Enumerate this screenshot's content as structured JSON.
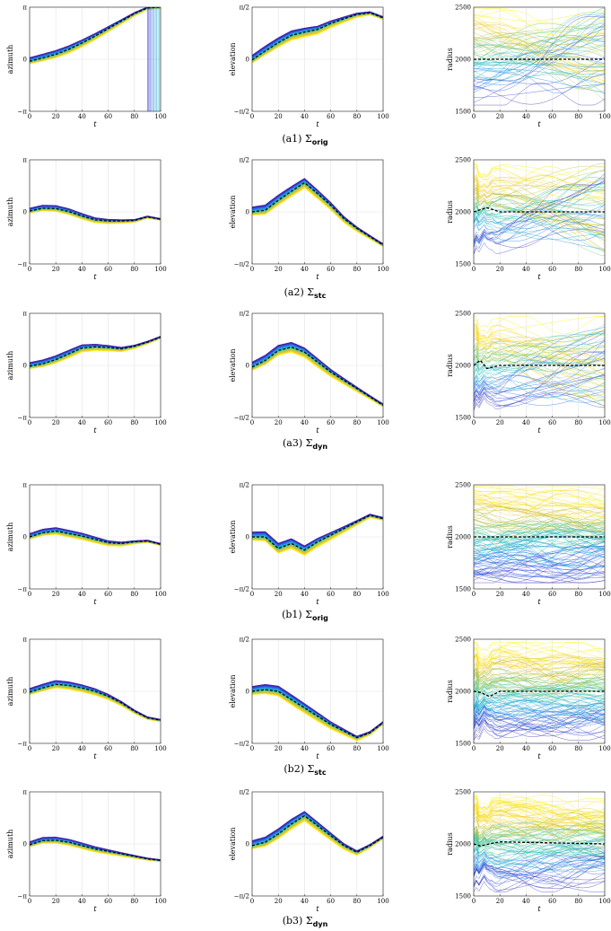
{
  "rows": [
    {
      "caption_label": "(a1)",
      "caption_symbol": "Σ",
      "caption_sub": "orig"
    },
    {
      "caption_label": "(a2)",
      "caption_symbol": "Σ",
      "caption_sub": "stc"
    },
    {
      "caption_label": "(a3)",
      "caption_symbol": "Σ",
      "caption_sub": "dyn"
    },
    {
      "caption_label": "(b1)",
      "caption_symbol": "Σ",
      "caption_sub": "orig"
    },
    {
      "caption_label": "(b2)",
      "caption_symbol": "Σ",
      "caption_sub": "stc"
    },
    {
      "caption_label": "(b3)",
      "caption_symbol": "Σ",
      "caption_sub": "dyn"
    }
  ],
  "colormap": [
    "#3e26a8",
    "#2f61f3",
    "#1d9fdd",
    "#1fbfb8",
    "#6ccc84",
    "#c9c040",
    "#fbcd2d",
    "#f9fb0e"
  ],
  "mean_line_color": "#000000",
  "chart_data": [
    {
      "row": 0,
      "panel": "azimuth",
      "type": "line",
      "xlabel": "t",
      "ylabel": "azimuth",
      "xlim": [
        0,
        100
      ],
      "ylim": [
        "−π",
        "π"
      ],
      "xticks": [
        0,
        20,
        40,
        60,
        80,
        100
      ],
      "yticks": [
        "−π",
        "0",
        "π"
      ],
      "mean_x": [
        0,
        10,
        20,
        30,
        40,
        50,
        60,
        70,
        80,
        90,
        100
      ],
      "mean_y": [
        -0.12,
        0.08,
        0.3,
        0.6,
        0.98,
        1.4,
        1.85,
        2.3,
        2.75,
        3.1,
        3.14
      ],
      "band": 0.22,
      "wrap": true
    },
    {
      "row": 0,
      "panel": "elevation",
      "type": "line",
      "xlabel": "t",
      "ylabel": "elevation",
      "xlim": [
        0,
        100
      ],
      "ylim": [
        "−π/2",
        "π/2"
      ],
      "xticks": [
        0,
        20,
        40,
        60,
        80,
        100
      ],
      "yticks": [
        "−π/2",
        "0",
        "π/2"
      ],
      "mean_x": [
        0,
        10,
        20,
        30,
        40,
        50,
        60,
        70,
        80,
        90,
        100
      ],
      "mean_y": [
        -0.02,
        0.25,
        0.5,
        0.72,
        0.82,
        0.9,
        1.08,
        1.22,
        1.35,
        1.4,
        1.25
      ],
      "band": 0.14
    },
    {
      "row": 0,
      "panel": "radius",
      "type": "line",
      "xlabel": "t",
      "ylabel": "radius",
      "xlim": [
        0,
        100
      ],
      "ylim": [
        1500,
        2500
      ],
      "xticks": [
        0,
        20,
        40,
        60,
        80,
        100
      ],
      "yticks": [
        1500,
        2000,
        2500
      ],
      "mean_x": [
        0,
        100
      ],
      "mean_y": [
        2000,
        2000
      ],
      "radius_min": 1600,
      "radius_max": 2450,
      "transient": false
    },
    {
      "row": 1,
      "panel": "azimuth",
      "type": "line",
      "xlabel": "t",
      "ylabel": "azimuth",
      "xlim": [
        0,
        100
      ],
      "ylim": [
        "−π",
        "π"
      ],
      "xticks": [
        0,
        20,
        40,
        60,
        80,
        100
      ],
      "yticks": [
        "−π",
        "0",
        "π"
      ],
      "mean_x": [
        0,
        10,
        20,
        30,
        40,
        50,
        60,
        70,
        80,
        90,
        100
      ],
      "mean_y": [
        0.05,
        0.22,
        0.2,
        0.02,
        -0.25,
        -0.48,
        -0.55,
        -0.55,
        -0.52,
        -0.3,
        -0.45
      ],
      "band": 0.17
    },
    {
      "row": 1,
      "panel": "elevation",
      "type": "line",
      "xlabel": "t",
      "ylabel": "elevation",
      "xlim": [
        0,
        100
      ],
      "ylim": [
        "−π/2",
        "π/2"
      ],
      "xticks": [
        0,
        20,
        40,
        60,
        80,
        100
      ],
      "yticks": [
        "−π/2",
        "0",
        "π/2"
      ],
      "mean_x": [
        0,
        10,
        20,
        30,
        40,
        50,
        60,
        70,
        80,
        90,
        100
      ],
      "mean_y": [
        0.0,
        0.05,
        0.35,
        0.62,
        0.88,
        0.55,
        0.2,
        -0.2,
        -0.5,
        -0.75,
        -1.0
      ],
      "band": 0.15
    },
    {
      "row": 1,
      "panel": "radius",
      "type": "line",
      "xlabel": "t",
      "ylabel": "radius",
      "xlim": [
        0,
        100
      ],
      "ylim": [
        1500,
        2500
      ],
      "xticks": [
        0,
        20,
        40,
        60,
        80,
        100
      ],
      "yticks": [
        1500,
        2000,
        2500
      ],
      "mean_x": [
        0,
        5,
        10,
        20,
        100
      ],
      "mean_y": [
        2000,
        2020,
        2040,
        2000,
        2000
      ],
      "radius_min": 1620,
      "radius_max": 2420,
      "transient": true
    },
    {
      "row": 2,
      "panel": "azimuth",
      "type": "line",
      "xlabel": "t",
      "ylabel": "azimuth",
      "xlim": [
        0,
        100
      ],
      "ylim": [
        "−π",
        "π"
      ],
      "xticks": [
        0,
        20,
        40,
        60,
        80,
        100
      ],
      "yticks": [
        "−π",
        "0",
        "π"
      ],
      "mean_x": [
        0,
        10,
        20,
        30,
        40,
        50,
        60,
        70,
        80,
        90,
        100
      ],
      "mean_y": [
        -0.05,
        0.1,
        0.35,
        0.7,
        1.05,
        1.12,
        1.08,
        1.0,
        1.15,
        1.4,
        1.7
      ],
      "band": 0.22
    },
    {
      "row": 2,
      "panel": "elevation",
      "type": "line",
      "xlabel": "t",
      "ylabel": "elevation",
      "xlim": [
        0,
        100
      ],
      "ylim": [
        "−π/2",
        "π/2"
      ],
      "xticks": [
        0,
        20,
        40,
        60,
        80,
        100
      ],
      "yticks": [
        "−π/2",
        "0",
        "π/2"
      ],
      "mean_x": [
        0,
        10,
        20,
        30,
        40,
        50,
        60,
        70,
        80,
        90,
        100
      ],
      "mean_y": [
        -0.05,
        0.15,
        0.45,
        0.55,
        0.4,
        0.1,
        -0.2,
        -0.45,
        -0.7,
        -0.95,
        -1.2
      ],
      "band": 0.15
    },
    {
      "row": 2,
      "panel": "radius",
      "type": "line",
      "xlabel": "t",
      "ylabel": "radius",
      "xlim": [
        0,
        100
      ],
      "ylim": [
        1500,
        2500
      ],
      "xticks": [
        0,
        20,
        40,
        60,
        80,
        100
      ],
      "yticks": [
        1500,
        2000,
        2500
      ],
      "mean_x": [
        0,
        5,
        10,
        20,
        100
      ],
      "mean_y": [
        2000,
        2050,
        1970,
        2000,
        2000
      ],
      "radius_min": 1580,
      "radius_max": 2430,
      "transient": true
    },
    {
      "row": 3,
      "panel": "azimuth",
      "type": "line",
      "xlabel": "t",
      "ylabel": "azimuth",
      "xlim": [
        0,
        100
      ],
      "ylim": [
        "−π",
        "π"
      ],
      "xticks": [
        0,
        20,
        40,
        60,
        80,
        100
      ],
      "yticks": [
        "−π",
        "0",
        "π"
      ],
      "mean_x": [
        0,
        10,
        20,
        30,
        40,
        50,
        60,
        70,
        80,
        90,
        100
      ],
      "mean_y": [
        0.0,
        0.25,
        0.35,
        0.2,
        0.05,
        -0.15,
        -0.35,
        -0.4,
        -0.3,
        -0.25,
        -0.45
      ],
      "band": 0.2
    },
    {
      "row": 3,
      "panel": "elevation",
      "type": "line",
      "xlabel": "t",
      "ylabel": "elevation",
      "xlim": [
        0,
        100
      ],
      "ylim": [
        "−π/2",
        "π/2"
      ],
      "xticks": [
        0,
        20,
        40,
        60,
        80,
        100
      ],
      "yticks": [
        "−π/2",
        "0",
        "π/2"
      ],
      "mean_x": [
        0,
        10,
        20,
        30,
        40,
        50,
        60,
        70,
        80,
        90,
        100
      ],
      "mean_y": [
        0.0,
        0.0,
        -0.35,
        -0.2,
        -0.4,
        -0.15,
        0.05,
        0.25,
        0.45,
        0.65,
        0.55
      ],
      "band": 0.15
    },
    {
      "row": 3,
      "panel": "radius",
      "type": "line",
      "xlabel": "t",
      "ylabel": "radius",
      "xlim": [
        0,
        100
      ],
      "ylim": [
        1500,
        2500
      ],
      "xticks": [
        0,
        20,
        40,
        60,
        80,
        100
      ],
      "yticks": [
        1500,
        2000,
        2500
      ],
      "mean_x": [
        0,
        100
      ],
      "mean_y": [
        2000,
        2000
      ],
      "radius_min": 1600,
      "radius_max": 2450,
      "transient": false
    },
    {
      "row": 4,
      "panel": "azimuth",
      "type": "line",
      "xlabel": "t",
      "ylabel": "azimuth",
      "xlim": [
        0,
        100
      ],
      "ylim": [
        "−π",
        "π"
      ],
      "xticks": [
        0,
        20,
        40,
        60,
        80,
        100
      ],
      "yticks": [
        "−π",
        "0",
        "π"
      ],
      "mean_x": [
        0,
        10,
        20,
        30,
        40,
        50,
        60,
        70,
        80,
        90,
        100
      ],
      "mean_y": [
        -0.05,
        0.2,
        0.42,
        0.35,
        0.2,
        0.0,
        -0.3,
        -0.7,
        -1.2,
        -1.6,
        -1.75
      ],
      "band": 0.22
    },
    {
      "row": 4,
      "panel": "elevation",
      "type": "line",
      "xlabel": "t",
      "ylabel": "elevation",
      "xlim": [
        0,
        100
      ],
      "ylim": [
        "−π/2",
        "π/2"
      ],
      "xticks": [
        0,
        20,
        40,
        60,
        80,
        100
      ],
      "yticks": [
        "−π/2",
        "0",
        "π/2"
      ],
      "mean_x": [
        0,
        10,
        20,
        30,
        40,
        50,
        60,
        70,
        80,
        90,
        100
      ],
      "mean_y": [
        0.0,
        0.05,
        0.0,
        -0.25,
        -0.5,
        -0.75,
        -1.0,
        -1.2,
        -1.4,
        -1.25,
        -0.95
      ],
      "band": 0.15
    },
    {
      "row": 4,
      "panel": "radius",
      "type": "line",
      "xlabel": "t",
      "ylabel": "radius",
      "xlim": [
        0,
        100
      ],
      "ylim": [
        1500,
        2500
      ],
      "xticks": [
        0,
        20,
        40,
        60,
        80,
        100
      ],
      "yticks": [
        1500,
        2000,
        2500
      ],
      "mean_x": [
        0,
        5,
        12,
        20,
        100
      ],
      "mean_y": [
        2000,
        1990,
        1950,
        2000,
        2000
      ],
      "radius_min": 1570,
      "radius_max": 2430,
      "transient": true
    },
    {
      "row": 5,
      "panel": "azimuth",
      "type": "line",
      "xlabel": "t",
      "ylabel": "azimuth",
      "xlim": [
        0,
        100
      ],
      "ylim": [
        "−π",
        "π"
      ],
      "xticks": [
        0,
        20,
        40,
        60,
        80,
        100
      ],
      "yticks": [
        "−π",
        "0",
        "π"
      ],
      "mean_x": [
        0,
        10,
        20,
        30,
        40,
        50,
        60,
        70,
        80,
        90,
        100
      ],
      "mean_y": [
        -0.05,
        0.2,
        0.22,
        0.1,
        -0.1,
        -0.3,
        -0.45,
        -0.6,
        -0.75,
        -0.9,
        -1.0
      ],
      "band": 0.18
    },
    {
      "row": 5,
      "panel": "elevation",
      "type": "line",
      "xlabel": "t",
      "ylabel": "elevation",
      "xlim": [
        0,
        100
      ],
      "ylim": [
        "−π/2",
        "π/2"
      ],
      "xticks": [
        0,
        20,
        40,
        60,
        80,
        100
      ],
      "yticks": [
        "−π/2",
        "0",
        "π/2"
      ],
      "mean_x": [
        0,
        10,
        20,
        30,
        40,
        50,
        60,
        70,
        80,
        90,
        100
      ],
      "mean_y": [
        -0.05,
        0.05,
        0.3,
        0.6,
        0.85,
        0.55,
        0.25,
        -0.05,
        -0.25,
        -0.05,
        0.2
      ],
      "band": 0.15
    },
    {
      "row": 5,
      "panel": "radius",
      "type": "line",
      "xlabel": "t",
      "ylabel": "radius",
      "xlim": [
        0,
        100
      ],
      "ylim": [
        1500,
        2500
      ],
      "xticks": [
        0,
        20,
        40,
        60,
        80,
        100
      ],
      "yticks": [
        1500,
        2000,
        2500
      ],
      "mean_x": [
        0,
        5,
        12,
        20,
        100
      ],
      "mean_y": [
        2000,
        1980,
        2000,
        2020,
        2000
      ],
      "radius_min": 1580,
      "radius_max": 2430,
      "transient": true
    }
  ]
}
